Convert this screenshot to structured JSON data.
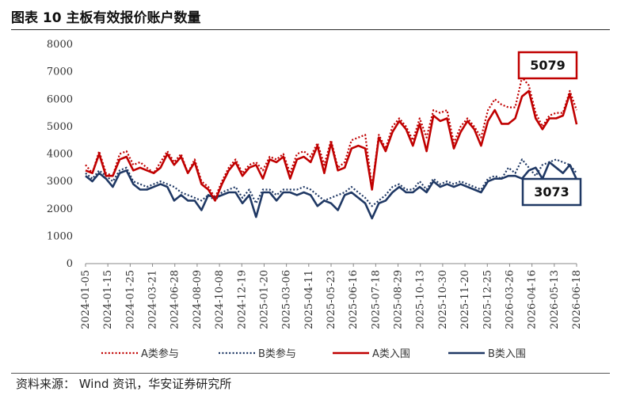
{
  "header": {
    "title": "图表 10 主板有效报价账户数量"
  },
  "footer": {
    "source": "资料来源： Wind 资讯，华安证券研究所"
  },
  "colors": {
    "a_color": "#c00000",
    "b_color": "#1f3864"
  },
  "chart_data": {
    "type": "line",
    "title": "图表 10 主板有效报价账户数量",
    "xlabel": "",
    "ylabel": "",
    "ylim": [
      0,
      8000
    ],
    "yticks": [
      0,
      1000,
      2000,
      3000,
      4000,
      5000,
      6000,
      7000,
      8000
    ],
    "xtick_labels": [
      "2024-01-05",
      "2024-01-15",
      "2024-01-25",
      "2024-03-21",
      "2024-06-28",
      "2024-08-09",
      "2024-10-08",
      "2024-12-19",
      "2025-01-20",
      "2025-03-06",
      "2025-04-11",
      "2025-05-23",
      "2025-06-16",
      "2025-07-18",
      "2025-08-29",
      "2025-10-13",
      "2025-10-30",
      "2025-11-20",
      "2025-12-25",
      "2026-03-26",
      "2026-04-16",
      "2026-05-13",
      "2026-06-18"
    ],
    "legend_position": "bottom",
    "annotations": [
      {
        "text": "5079",
        "series": "A类入围"
      },
      {
        "text": "3073",
        "series": "B类入围"
      }
    ],
    "series": [
      {
        "name": "A类参与",
        "style": "dotted",
        "color": "#c00000",
        "values": [
          3600,
          3300,
          4100,
          3300,
          3200,
          4000,
          4100,
          3600,
          3700,
          3500,
          3300,
          3700,
          4100,
          3700,
          4000,
          3300,
          3800,
          3000,
          2800,
          2400,
          3000,
          3500,
          3800,
          3300,
          3600,
          3700,
          3400,
          3900,
          3800,
          4000,
          3300,
          4000,
          4100,
          3900,
          4400,
          3600,
          4500,
          3500,
          3700,
          4500,
          4600,
          4700,
          2800,
          4700,
          4200,
          5000,
          5300,
          5000,
          4500,
          5300,
          4600,
          5600,
          5500,
          5600,
          4400,
          5000,
          5300,
          5000,
          4600,
          5600,
          6000,
          5800,
          5700,
          5700,
          6800,
          6500,
          5500,
          5000,
          5400,
          5500,
          5500,
          6300,
          5600
        ]
      },
      {
        "name": "B类参与",
        "style": "dotted",
        "color": "#1f3864",
        "values": [
          3300,
          3100,
          3400,
          3200,
          3000,
          3400,
          3500,
          3000,
          2900,
          2800,
          2900,
          3000,
          2900,
          2800,
          2600,
          2500,
          2400,
          2300,
          2500,
          2300,
          2600,
          2700,
          2800,
          2400,
          2700,
          2200,
          2700,
          2700,
          2500,
          2700,
          2700,
          2700,
          2800,
          2700,
          2500,
          2300,
          2400,
          2500,
          2600,
          2800,
          2600,
          2400,
          2100,
          2300,
          2500,
          2800,
          2900,
          2700,
          2700,
          3000,
          2700,
          3100,
          2900,
          3000,
          2900,
          3000,
          2900,
          2800,
          2700,
          3100,
          3200,
          3100,
          3500,
          3300,
          3800,
          3500,
          3200,
          3600,
          3700,
          3800,
          3700,
          3600,
          3300
        ]
      },
      {
        "name": "A类入围",
        "style": "solid",
        "color": "#c00000",
        "values": [
          3400,
          3300,
          4000,
          3200,
          3200,
          3800,
          3900,
          3400,
          3500,
          3400,
          3300,
          3500,
          4000,
          3600,
          3900,
          3300,
          3700,
          2900,
          2700,
          2300,
          2900,
          3400,
          3700,
          3200,
          3500,
          3600,
          3100,
          3800,
          3700,
          3900,
          3100,
          3800,
          3900,
          3700,
          4300,
          3300,
          4400,
          3400,
          3500,
          4200,
          4300,
          4200,
          2700,
          4600,
          4100,
          4800,
          5200,
          4900,
          4300,
          5100,
          4100,
          5400,
          5200,
          5300,
          4200,
          4800,
          5200,
          4900,
          4300,
          5200,
          5600,
          5100,
          5100,
          5300,
          6100,
          6300,
          5300,
          4900,
          5300,
          5300,
          5400,
          6200,
          5079
        ]
      },
      {
        "name": "B类入围",
        "style": "solid",
        "color": "#1f3864",
        "values": [
          3200,
          3000,
          3300,
          3100,
          2800,
          3300,
          3400,
          2900,
          2700,
          2700,
          2800,
          2900,
          2800,
          2300,
          2500,
          2300,
          2300,
          1950,
          2500,
          2400,
          2500,
          2600,
          2600,
          2200,
          2500,
          1700,
          2600,
          2600,
          2300,
          2600,
          2600,
          2500,
          2600,
          2500,
          2100,
          2300,
          2200,
          1950,
          2500,
          2600,
          2400,
          2200,
          1650,
          2200,
          2300,
          2600,
          2800,
          2600,
          2600,
          2800,
          2600,
          3000,
          2800,
          2900,
          2800,
          2900,
          2800,
          2700,
          2600,
          3000,
          3100,
          3100,
          3200,
          3200,
          3100,
          3400,
          3500,
          3100,
          3700,
          3500,
          3300,
          3600,
          3073
        ]
      }
    ]
  }
}
